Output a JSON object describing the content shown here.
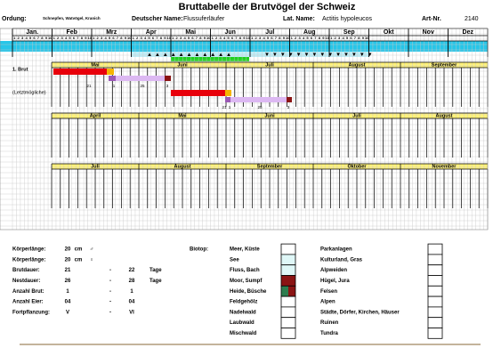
{
  "header": {
    "title": "Bruttabelle der Brutvögel der Schweiz",
    "fields": [
      {
        "label": "Ordung:",
        "value": "Schnepfen, Watvögel, Kranich"
      },
      {
        "label": "Deutscher Name:",
        "value": "Flussuferläufer"
      },
      {
        "label": "Lat. Name:",
        "value": "Actitis hypoleucos"
      },
      {
        "label": "Art-Nr.",
        "value": "2140"
      }
    ]
  },
  "calendar": {
    "months": [
      "Jan.",
      "Feb",
      "Mrz",
      "Apr",
      "Mai",
      "Jun",
      "Jul",
      "Aug",
      "Sep",
      "Okt",
      "Nov",
      "Dez"
    ],
    "days": [
      "1",
      "2",
      "3",
      "4",
      "5",
      "6",
      "7",
      "8",
      "9",
      "10"
    ]
  },
  "sections": [
    {
      "months": [
        "Mai",
        "Juni",
        "Juli",
        "August",
        "September"
      ],
      "rows": [
        "1. Brut",
        "(Letztmögliche)"
      ],
      "day_labels": [
        "21",
        "1",
        "25",
        "3",
        "21",
        "1",
        "25",
        "3"
      ]
    },
    {
      "months": [
        "April",
        "Mai",
        "Juni",
        "Juli",
        "August"
      ]
    },
    {
      "months": [
        "Juli",
        "August",
        "September",
        "Oktober",
        "November"
      ]
    }
  ],
  "stats": [
    {
      "label": "Körperlänge:",
      "values": [
        "20",
        "cm",
        "♂"
      ]
    },
    {
      "label": "Körperlänge:",
      "values": [
        "20",
        "cm",
        "♀"
      ]
    },
    {
      "label": "Brutdauer:",
      "values": [
        "21",
        "-",
        "22",
        "Tage"
      ]
    },
    {
      "label": "Nestdauer:",
      "values": [
        "26",
        "-",
        "28",
        "Tage"
      ]
    },
    {
      "label": "Anzahl Brut:",
      "values": [
        "1",
        "-",
        "1"
      ]
    },
    {
      "label": "Anzahl Eier:",
      "values": [
        "04",
        "-",
        "04"
      ]
    },
    {
      "label": "Fortpflanzung:",
      "values": [
        "V",
        "-",
        "VI"
      ]
    }
  ],
  "biotop": {
    "label": "Biotop:",
    "left": [
      {
        "name": "Meer, Küste"
      },
      {
        "name": "See",
        "fill": [
          "#dff7f7"
        ]
      },
      {
        "name": "Fluss, Bach",
        "fill": [
          "#dff7f7"
        ]
      },
      {
        "name": "Moor, Sumpf",
        "fill": [
          "#8b1414"
        ]
      },
      {
        "name": "Heide, Büsche",
        "fill": [
          "#2e7d4f",
          "#8b1414"
        ]
      },
      {
        "name": "Feldgehölz"
      },
      {
        "name": "Nadelwald"
      },
      {
        "name": "Laubwald"
      },
      {
        "name": "Mischwald"
      }
    ],
    "right": [
      {
        "name": "Parkanlagen"
      },
      {
        "name": "Kulturland, Gras"
      },
      {
        "name": "Alpweiden"
      },
      {
        "name": "Hügel, Jura"
      },
      {
        "name": "Felsen"
      },
      {
        "name": "Alpen"
      },
      {
        "name": "Städte, Dörfer, Kirchen, Häuser"
      },
      {
        "name": "Ruinen"
      },
      {
        "name": "Tundra"
      }
    ]
  }
}
